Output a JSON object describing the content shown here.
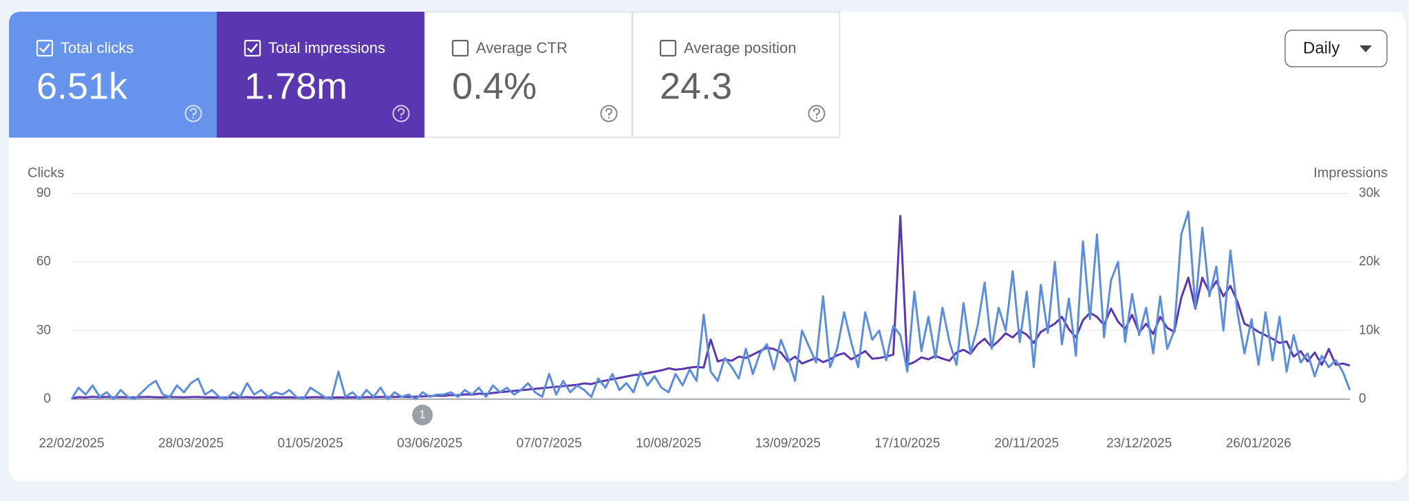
{
  "metrics": [
    {
      "label": "Total clicks",
      "value": "6.51k",
      "checked": true,
      "color": "#6694ec"
    },
    {
      "label": "Total impressions",
      "value": "1.78m",
      "checked": true,
      "color": "#5a36b0"
    },
    {
      "label": "Average CTR",
      "value": "0.4%",
      "checked": false
    },
    {
      "label": "Average position",
      "value": "24.3",
      "checked": false
    }
  ],
  "dropdown": "Daily",
  "chart_data": {
    "type": "line",
    "y_label": "Clicks",
    "y2_label": "Impressions",
    "annotations": [
      "1"
    ],
    "categories": [
      "22/02/2025",
      null,
      null,
      null,
      null,
      null,
      null,
      null,
      null,
      null,
      null,
      null,
      null,
      null,
      null,
      null,
      null,
      "28/03/2025",
      null,
      null,
      null,
      null,
      null,
      null,
      null,
      null,
      null,
      null,
      null,
      null,
      null,
      null,
      null,
      null,
      "01/05/2025",
      null,
      null,
      null,
      null,
      null,
      null,
      null,
      null,
      null,
      null,
      null,
      null,
      null,
      null,
      null,
      null,
      "03/06/2025",
      null,
      null,
      null,
      null,
      null,
      null,
      null,
      null,
      null,
      null,
      null,
      null,
      null,
      null,
      null,
      null,
      "07/07/2025",
      null,
      null,
      null,
      null,
      null,
      null,
      null,
      null,
      null,
      null,
      null,
      null,
      null,
      null,
      null,
      null,
      "10/08/2025",
      null,
      null,
      null,
      null,
      null,
      null,
      null,
      null,
      null,
      null,
      null,
      null,
      null,
      null,
      null,
      null,
      "13/09/2025",
      null,
      null,
      null,
      null,
      null,
      null,
      null,
      null,
      null,
      null,
      null,
      null,
      null,
      null,
      null,
      null,
      "17/10/2025",
      null,
      null,
      null,
      null,
      null,
      null,
      null,
      null,
      null,
      null,
      null,
      null,
      null,
      null,
      null,
      null,
      "20/11/2025",
      null,
      null,
      null,
      null,
      null,
      null,
      null,
      null,
      null,
      null,
      null,
      null,
      null,
      null,
      null,
      "23/12/2025",
      null,
      null,
      null,
      null,
      null,
      null,
      null,
      null,
      null,
      null,
      null,
      null,
      null,
      null,
      null,
      null,
      "26/01/2026",
      null,
      null,
      null,
      null,
      null,
      null,
      null,
      null,
      null,
      null,
      null,
      null,
      null
    ],
    "series": [
      {
        "name": "Clicks",
        "color": "#5b8ddc",
        "axis": "y",
        "values": [
          0,
          5,
          2,
          6,
          1,
          3,
          0,
          4,
          1,
          0,
          3,
          6,
          8,
          2,
          1,
          6,
          3,
          7,
          9,
          2,
          4,
          1,
          0,
          3,
          1,
          7,
          2,
          4,
          1,
          3,
          2,
          4,
          1,
          0,
          5,
          3,
          1,
          0,
          12,
          1,
          3,
          0,
          4,
          1,
          5,
          0,
          3,
          1,
          2,
          0,
          3,
          1,
          2,
          2,
          3,
          1,
          4,
          2,
          5,
          1,
          6,
          3,
          5,
          2,
          4,
          7,
          3,
          1,
          11,
          2,
          8,
          3,
          6,
          4,
          1,
          9,
          5,
          11,
          4,
          7,
          3,
          12,
          6,
          10,
          5,
          3,
          11,
          6,
          13,
          8,
          37,
          12,
          8,
          18,
          14,
          9,
          22,
          11,
          20,
          24,
          13,
          26,
          18,
          8,
          30,
          23,
          16,
          45,
          14,
          22,
          38,
          25,
          14,
          38,
          26,
          30,
          17,
          32,
          28,
          12,
          47,
          21,
          36,
          18,
          40,
          25,
          15,
          42,
          20,
          32,
          51,
          22,
          40,
          30,
          56,
          25,
          47,
          14,
          50,
          29,
          60,
          24,
          44,
          19,
          69,
          35,
          72,
          27,
          52,
          60,
          25,
          46,
          28,
          40,
          20,
          45,
          22,
          30,
          72,
          82,
          40,
          75,
          45,
          58,
          30,
          65,
          38,
          20,
          35,
          15,
          38,
          17,
          36,
          12,
          28,
          16,
          20,
          10,
          19,
          14,
          17,
          12,
          4
        ]
      },
      {
        "name": "Impressions",
        "color": "#5a36b0",
        "axis": "y2",
        "values": [
          100,
          300,
          250,
          350,
          280,
          320,
          260,
          300,
          270,
          250,
          300,
          320,
          280,
          260,
          310,
          290,
          270,
          300,
          330,
          260,
          280,
          250,
          230,
          270,
          260,
          300,
          240,
          280,
          250,
          270,
          260,
          280,
          240,
          220,
          270,
          300,
          250,
          230,
          260,
          240,
          280,
          250,
          300,
          270,
          320,
          290,
          330,
          350,
          310,
          360,
          400,
          450,
          500,
          480,
          600,
          550,
          700,
          650,
          800,
          750,
          900,
          1000,
          1100,
          1200,
          1300,
          1400,
          1500,
          1600,
          1700,
          1800,
          1900,
          2000,
          2100,
          2300,
          2200,
          2500,
          2700,
          2900,
          3100,
          3300,
          3500,
          3600,
          3800,
          4000,
          4200,
          4500,
          4300,
          4400,
          4600,
          4700,
          4600,
          8700,
          5500,
          5800,
          5600,
          6200,
          6000,
          6500,
          7000,
          7500,
          7300,
          6800,
          5500,
          6200,
          5200,
          5600,
          6000,
          5400,
          5800,
          6400,
          6700,
          5800,
          6400,
          7000,
          5900,
          6000,
          6200,
          6500,
          26700,
          5000,
          5400,
          6100,
          5800,
          6300,
          5900,
          5600,
          6800,
          7200,
          6600,
          8000,
          8800,
          7600,
          8500,
          9600,
          9000,
          10000,
          9400,
          8200,
          9800,
          10400,
          11000,
          12000,
          10200,
          9000,
          11500,
          12600,
          12000,
          10800,
          13200,
          11300,
          10200,
          12300,
          9700,
          11000,
          9500,
          12000,
          10400,
          9800,
          14800,
          17700,
          13200,
          17700,
          15600,
          17200,
          15000,
          16500,
          14200,
          11000,
          10500,
          9800,
          9300,
          8800,
          8200,
          8400,
          6200,
          7000,
          5500,
          6800,
          5000,
          7300,
          5000,
          5200,
          4900
        ]
      }
    ],
    "ylim": [
      0,
      90
    ],
    "yticks": [
      0,
      30,
      60,
      90
    ],
    "y2lim": [
      0,
      30000
    ],
    "y2ticks": [
      0,
      {
        "value": 10000,
        "label": "10k"
      },
      {
        "value": 20000,
        "label": "20k"
      },
      {
        "value": 30000,
        "label": "30k"
      }
    ],
    "grid": true
  }
}
